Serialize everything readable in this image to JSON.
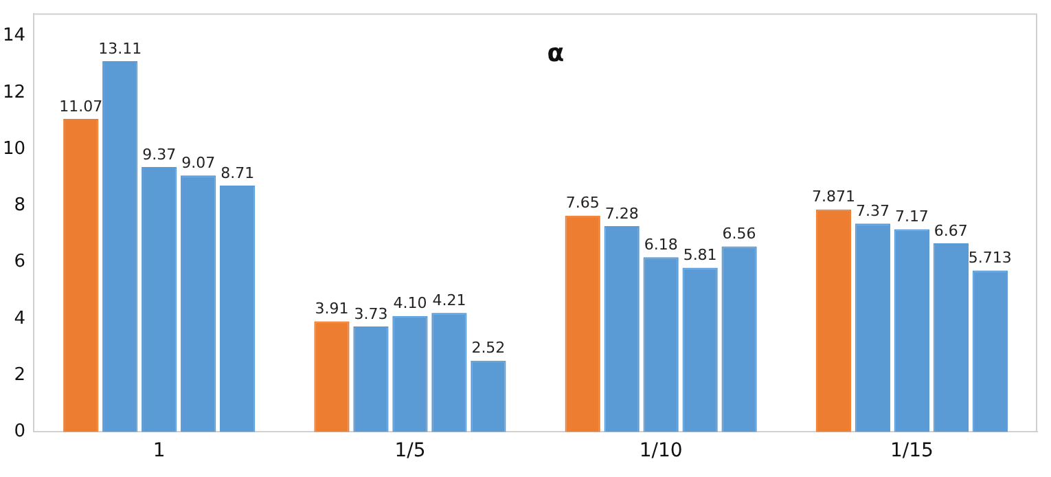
{
  "chart_data": {
    "type": "bar",
    "title": "α",
    "categories": [
      "1",
      "1/5",
      "1/10",
      "1/15"
    ],
    "series": [
      {
        "color": "#ed7d31",
        "values": [
          11.07,
          3.91,
          7.65,
          7.871
        ],
        "value_labels": [
          "11.07",
          "3.91",
          "7.65",
          "7.871"
        ]
      },
      {
        "color": "#5b9bd5",
        "values": [
          13.11,
          3.73,
          7.28,
          7.37
        ],
        "value_labels": [
          "13.11",
          "3.73",
          "7.28",
          "7.37"
        ]
      },
      {
        "color": "#5b9bd5",
        "values": [
          9.37,
          4.1,
          6.18,
          7.17
        ],
        "value_labels": [
          "9.37",
          "4.10",
          "6.18",
          "7.17"
        ]
      },
      {
        "color": "#5b9bd5",
        "values": [
          9.07,
          4.21,
          5.81,
          6.67
        ],
        "value_labels": [
          "9.07",
          "4.21",
          "5.81",
          "6.67"
        ]
      },
      {
        "color": "#5b9bd5",
        "values": [
          8.71,
          2.52,
          6.56,
          5.713
        ],
        "value_labels": [
          "8.71",
          "2.52",
          "6.56",
          "5.713"
        ]
      }
    ],
    "ylim": [
      0,
      14.8
    ],
    "yticks": [
      0,
      2,
      4,
      6,
      8,
      10,
      12,
      14
    ],
    "grid": false,
    "legend": false
  }
}
